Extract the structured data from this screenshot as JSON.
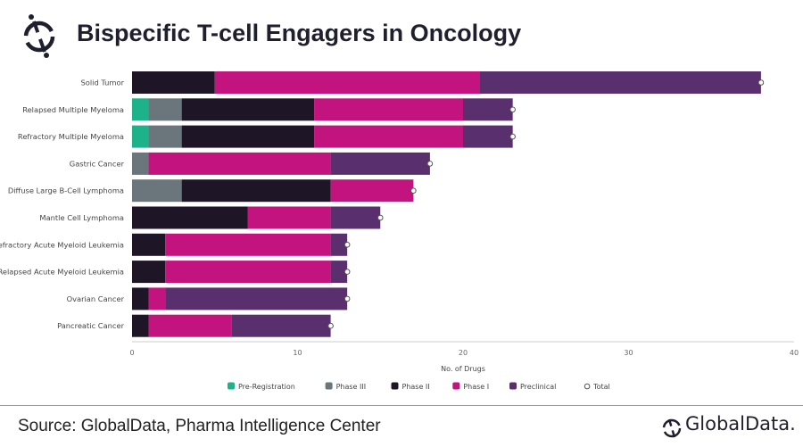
{
  "header": {
    "title": "Bispecific T-cell Engagers in Oncology",
    "logo": "globaldata-mark-icon"
  },
  "footer": {
    "source": "Source: GlobalData, Pharma Intelligence Center",
    "brand": "GlobalData."
  },
  "chart_data": {
    "type": "bar",
    "orientation": "horizontal",
    "stacked": true,
    "title": "Bispecific T-cell Engagers in Oncology",
    "xlabel": "No. of Drugs",
    "ylabel": "",
    "xlim": [
      0,
      40
    ],
    "xticks": [
      0,
      10,
      20,
      30,
      40
    ],
    "grid": false,
    "legend_position": "bottom",
    "categories": [
      "Solid Tumor",
      "Relapsed Multiple Myeloma",
      "Refractory Multiple Myeloma",
      "Gastric Cancer",
      "Diffuse Large B-Cell Lymphoma",
      "Mantle Cell Lymphoma",
      "Refractory Acute Myeloid Leukemia",
      "Relapsed Acute Myeloid Leukemia",
      "Ovarian Cancer",
      "Pancreatic Cancer"
    ],
    "series": [
      {
        "name": "Pre-Registration",
        "color": "#1db38a",
        "values": [
          0,
          1,
          1,
          0,
          0,
          0,
          0,
          0,
          0,
          0
        ]
      },
      {
        "name": "Phase III",
        "color": "#6b757c",
        "values": [
          0,
          2,
          2,
          1,
          3,
          0,
          0,
          0,
          0,
          0
        ]
      },
      {
        "name": "Phase II",
        "color": "#1e1626",
        "values": [
          5,
          8,
          8,
          0,
          9,
          7,
          2,
          2,
          1,
          1
        ]
      },
      {
        "name": "Phase I",
        "color": "#c2137e",
        "values": [
          16,
          9,
          9,
          11,
          5,
          5,
          10,
          10,
          1,
          5
        ]
      },
      {
        "name": "Preclinical",
        "color": "#5a2f6e",
        "values": [
          17,
          3,
          3,
          6,
          0,
          3,
          1,
          1,
          11,
          6
        ]
      }
    ],
    "totals": {
      "name": "Total",
      "values": [
        38,
        23,
        23,
        18,
        17,
        15,
        13,
        13,
        13,
        12
      ]
    }
  }
}
